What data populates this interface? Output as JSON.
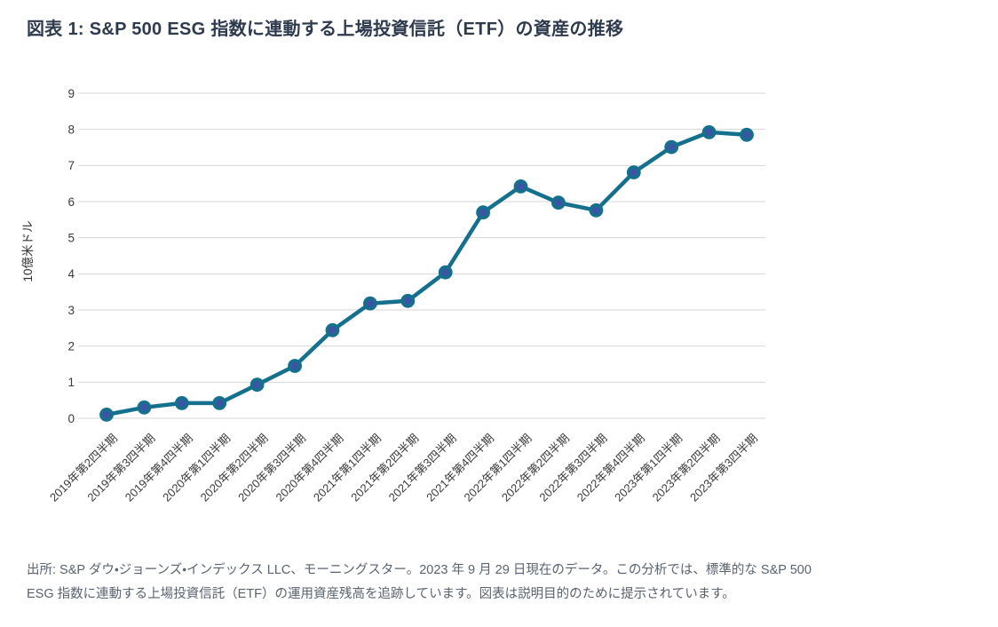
{
  "title": "図表 1: S&P 500 ESG 指数に連動する上場投資信託（ETF）の資産の推移",
  "footer": {
    "line1": "出所: S&P ダウ・ジョーンズ・インデックス LLC、モーニングスター。2023 年 9 月 29 日現在のデータ。この分析では、標準的な S&P 500",
    "line2": "ESG 指数に連動する上場投資信託（ETF）の運用資産残高を追跡しています。図表は説明目的のために提示されています。"
  },
  "chart_data": {
    "type": "line",
    "title": "図表 1: S&P 500 ESG 指数に連動する上場投資信託（ETF）の資産の推移",
    "xlabel": "",
    "ylabel": "10億米ドル",
    "ylim": [
      0,
      9
    ],
    "yticks": [
      0,
      1,
      2,
      3,
      4,
      5,
      6,
      7,
      8,
      9
    ],
    "grid": "horizontal",
    "legend": "none",
    "categories": [
      "2019年第2四半期",
      "2019年第3四半期",
      "2019年第4四半期",
      "2020年第1四半期",
      "2020年第2四半期",
      "2020年第3四半期",
      "2020年第4四半期",
      "2021年第1四半期",
      "2021年第2四半期",
      "2021年第3四半期",
      "2021年第4四半期",
      "2022年第1四半期",
      "2022年第2四半期",
      "2022年第3四半期",
      "2022年第4四半期",
      "2023年第1四半期",
      "2023年第2四半期",
      "2023年第3四半期"
    ],
    "values": [
      0.1,
      0.3,
      0.42,
      0.42,
      0.93,
      1.45,
      2.44,
      3.18,
      3.25,
      4.04,
      5.7,
      6.42,
      5.97,
      5.76,
      6.81,
      7.51,
      7.92,
      7.85
    ],
    "colors": {
      "line": "#14708C",
      "marker_fill": "#3C54A4",
      "marker_edge": "#14708C",
      "grid": "#D6D6D6",
      "tick_label": "#3A3A3A",
      "axis_title": "#333333",
      "title_text": "#2E3A4D",
      "footer_text": "#59636F"
    }
  }
}
